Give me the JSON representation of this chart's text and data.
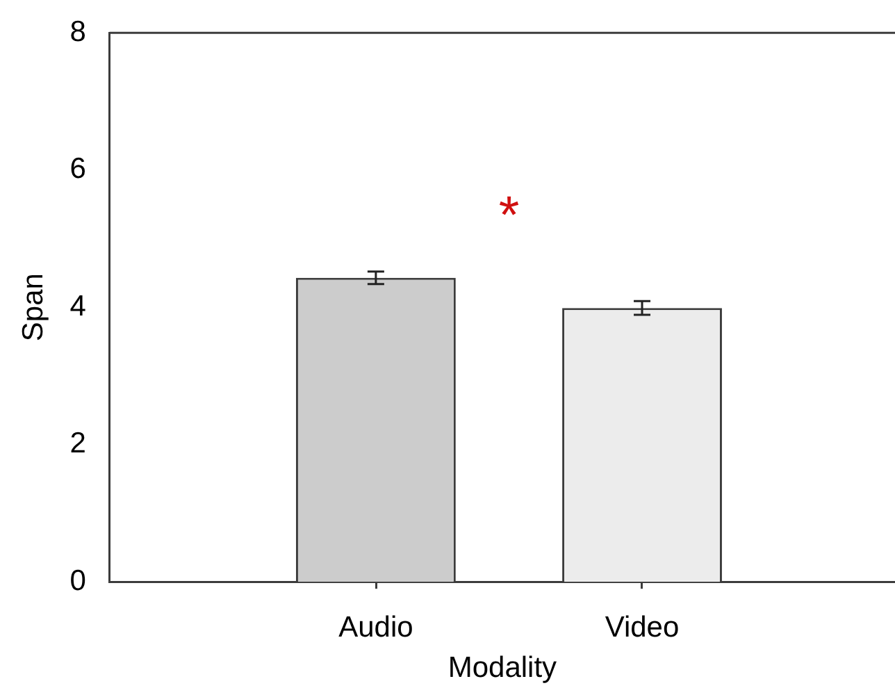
{
  "chart_data": {
    "type": "bar",
    "xlabel": "Modality",
    "ylabel": "Span",
    "categories": [
      "Audio",
      "Video"
    ],
    "values": [
      4.43,
      3.99
    ],
    "errors": [
      0.09,
      0.1
    ],
    "colors": [
      "#cccccc",
      "#ececec"
    ],
    "ylim": [
      0,
      8
    ],
    "yticks": [
      0,
      2,
      4,
      6,
      8
    ],
    "legend": false,
    "annotations": [
      "*"
    ]
  }
}
